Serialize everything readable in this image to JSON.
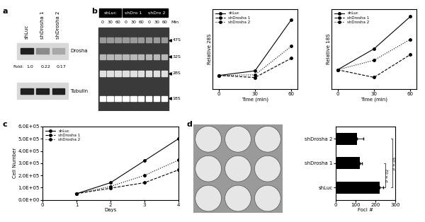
{
  "panel_labels": [
    "a",
    "b",
    "c",
    "d"
  ],
  "blot_a": {
    "lanes": [
      "shLuc",
      "shDrosha 1",
      "shDrosha 2"
    ],
    "rows": [
      "Drosha",
      "Tubulin"
    ],
    "fold_label": "Fold:",
    "fold": [
      "1.0",
      "0.22",
      "0.17"
    ]
  },
  "gel_b": {
    "lanes": [
      "shLuc",
      "shDro 1",
      "shDro 2"
    ],
    "times": [
      "0",
      "30",
      "60"
    ],
    "time_unit": "Min",
    "bands": [
      "47S",
      "32S",
      "28S",
      "18S"
    ]
  },
  "chart_data": [
    {
      "type": "line",
      "ylabel": "Relative 28S",
      "xlabel": "Time (min)",
      "x": [
        0,
        30,
        60
      ],
      "xlim": [
        -5,
        65
      ],
      "xticks": [
        0,
        30,
        60
      ],
      "ylim": [
        0,
        6
      ],
      "tick_labels": "x",
      "legend": "upper left",
      "series": [
        {
          "name": "shLuc",
          "color": "#000000",
          "marker": "circle",
          "line_style": "solid",
          "values": [
            1.0,
            1.35,
            5.2
          ]
        },
        {
          "name": "shDrosha 1",
          "color": "#000000",
          "marker": "circle",
          "line_style": "dashed",
          "values": [
            1.0,
            0.85,
            2.3
          ]
        },
        {
          "name": "shDrosha 2",
          "color": "#000000",
          "marker": "circle",
          "line_style": "dotted",
          "values": [
            1.0,
            1.05,
            3.2
          ]
        }
      ]
    },
    {
      "type": "line",
      "ylabel": "Relative 18S",
      "xlabel": "Time (min)",
      "x": [
        0,
        30,
        60
      ],
      "xlim": [
        -5,
        65
      ],
      "xticks": [
        0,
        30,
        60
      ],
      "ylim": [
        0.5,
        2.6
      ],
      "tick_labels": "x",
      "legend": "upper left",
      "series": [
        {
          "name": "shLuc",
          "color": "#000000",
          "marker": "circle",
          "line_style": "solid",
          "values": [
            1.0,
            1.55,
            2.4
          ]
        },
        {
          "name": "shDrosha 1",
          "color": "#000000",
          "marker": "circle",
          "line_style": "dashed",
          "values": [
            1.0,
            0.8,
            1.4
          ]
        },
        {
          "name": "shDrosha 2",
          "color": "#000000",
          "marker": "circle",
          "line_style": "dotted",
          "values": [
            1.0,
            1.25,
            1.8
          ]
        }
      ]
    },
    {
      "type": "line",
      "ylabel": "Cell Number",
      "xlabel": "Days",
      "x": [
        1,
        2,
        3,
        4
      ],
      "xlim": [
        0,
        4
      ],
      "xticks": [
        0,
        1,
        2,
        3,
        4
      ],
      "ylim": [
        0,
        600000
      ],
      "yticks": [
        {
          "value": 0,
          "label": "0.0E+00"
        },
        {
          "value": 100000,
          "label": "1.0E+05"
        },
        {
          "value": 200000,
          "label": "2.0E+05"
        },
        {
          "value": 300000,
          "label": "3.0E+05"
        },
        {
          "value": 400000,
          "label": "4.0E+05"
        },
        {
          "value": 500000,
          "label": "5.0E+05"
        },
        {
          "value": 600000,
          "label": "6.0E+05"
        }
      ],
      "legend": "upper left",
      "series": [
        {
          "name": "shLuc",
          "color": "#000000",
          "marker": "circle",
          "line_style": "solid",
          "values": [
            50000,
            140000,
            320000,
            500000
          ]
        },
        {
          "name": "shDrosha 1",
          "color": "#000000",
          "marker": "circle",
          "line_style": "dashed",
          "values": [
            50000,
            95000,
            140000,
            245000
          ]
        },
        {
          "name": "shDrosha 2",
          "color": "#000000",
          "marker": "circle",
          "line_style": "dotted",
          "values": [
            50000,
            110000,
            200000,
            325000
          ]
        }
      ]
    },
    {
      "type": "bar",
      "orientation": "horizontal",
      "xlabel": "Foci #",
      "categories": [
        "shDrosha 2",
        "shDrosha 1",
        "shLuc"
      ],
      "values": [
        108,
        123,
        220
      ],
      "errors": [
        30,
        10,
        20
      ],
      "color": "#000000",
      "xlim": [
        0,
        300
      ],
      "xticks": [
        0,
        100,
        200,
        300
      ],
      "annotations": [
        {
          "text": "P =.05",
          "between": [
            "shDrosha 2",
            "shLuc"
          ]
        },
        {
          "text": "P =.02",
          "between": [
            "shDrosha 1",
            "shLuc"
          ]
        }
      ]
    }
  ]
}
